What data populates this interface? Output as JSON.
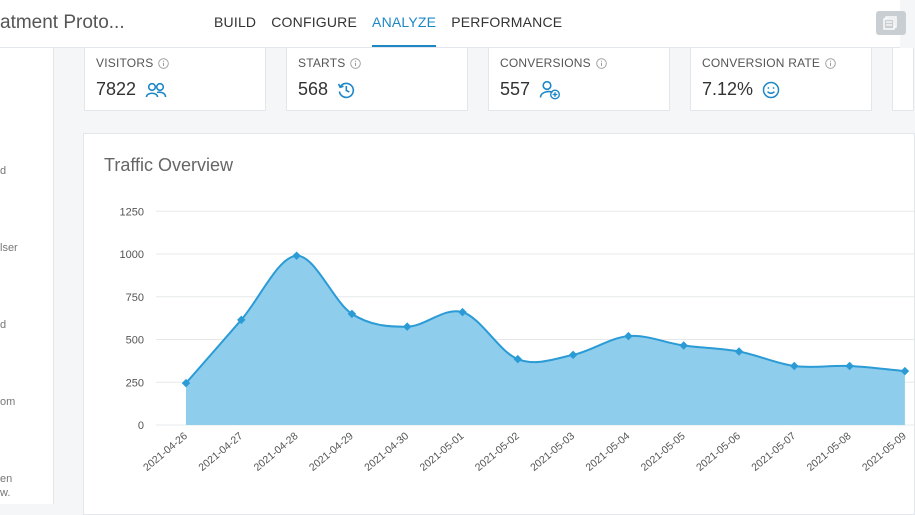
{
  "header": {
    "app_title": "atment Proto...",
    "tabs": [
      {
        "label": "BUILD",
        "active": false
      },
      {
        "label": "CONFIGURE",
        "active": false
      },
      {
        "label": "ANALYZE",
        "active": true
      },
      {
        "label": "PERFORMANCE",
        "active": false
      }
    ],
    "accent_color": "#1e88c7"
  },
  "sidebar": {
    "fragments": [
      "d",
      "lser",
      "d",
      "om",
      "en",
      "w."
    ]
  },
  "stats": [
    {
      "label": "VISITORS",
      "value": "7822",
      "icon": "users-icon"
    },
    {
      "label": "STARTS",
      "value": "568",
      "icon": "history-icon"
    },
    {
      "label": "CONVERSIONS",
      "value": "557",
      "icon": "user-plus-icon"
    },
    {
      "label": "CONVERSION RATE",
      "value": "7.12%",
      "icon": "smile-icon"
    }
  ],
  "chart": {
    "title": "Traffic Overview"
  },
  "chart_data": {
    "type": "area",
    "title": "Traffic Overview",
    "xlabel": "",
    "ylabel": "",
    "ylim": [
      0,
      1250
    ],
    "y_ticks": [
      0,
      250,
      500,
      750,
      1000,
      1250
    ],
    "grid": true,
    "x": [
      "2021-04-26",
      "2021-04-27",
      "2021-04-28",
      "2021-04-29",
      "2021-04-30",
      "2021-05-01",
      "2021-05-02",
      "2021-05-03",
      "2021-05-04",
      "2021-05-05",
      "2021-05-06",
      "2021-05-07",
      "2021-05-08",
      "2021-05-09"
    ],
    "values": [
      245,
      615,
      990,
      650,
      575,
      660,
      385,
      410,
      520,
      465,
      430,
      345,
      345,
      315
    ],
    "line_color": "#2b9bd6",
    "fill_color": "#8ecdec"
  }
}
